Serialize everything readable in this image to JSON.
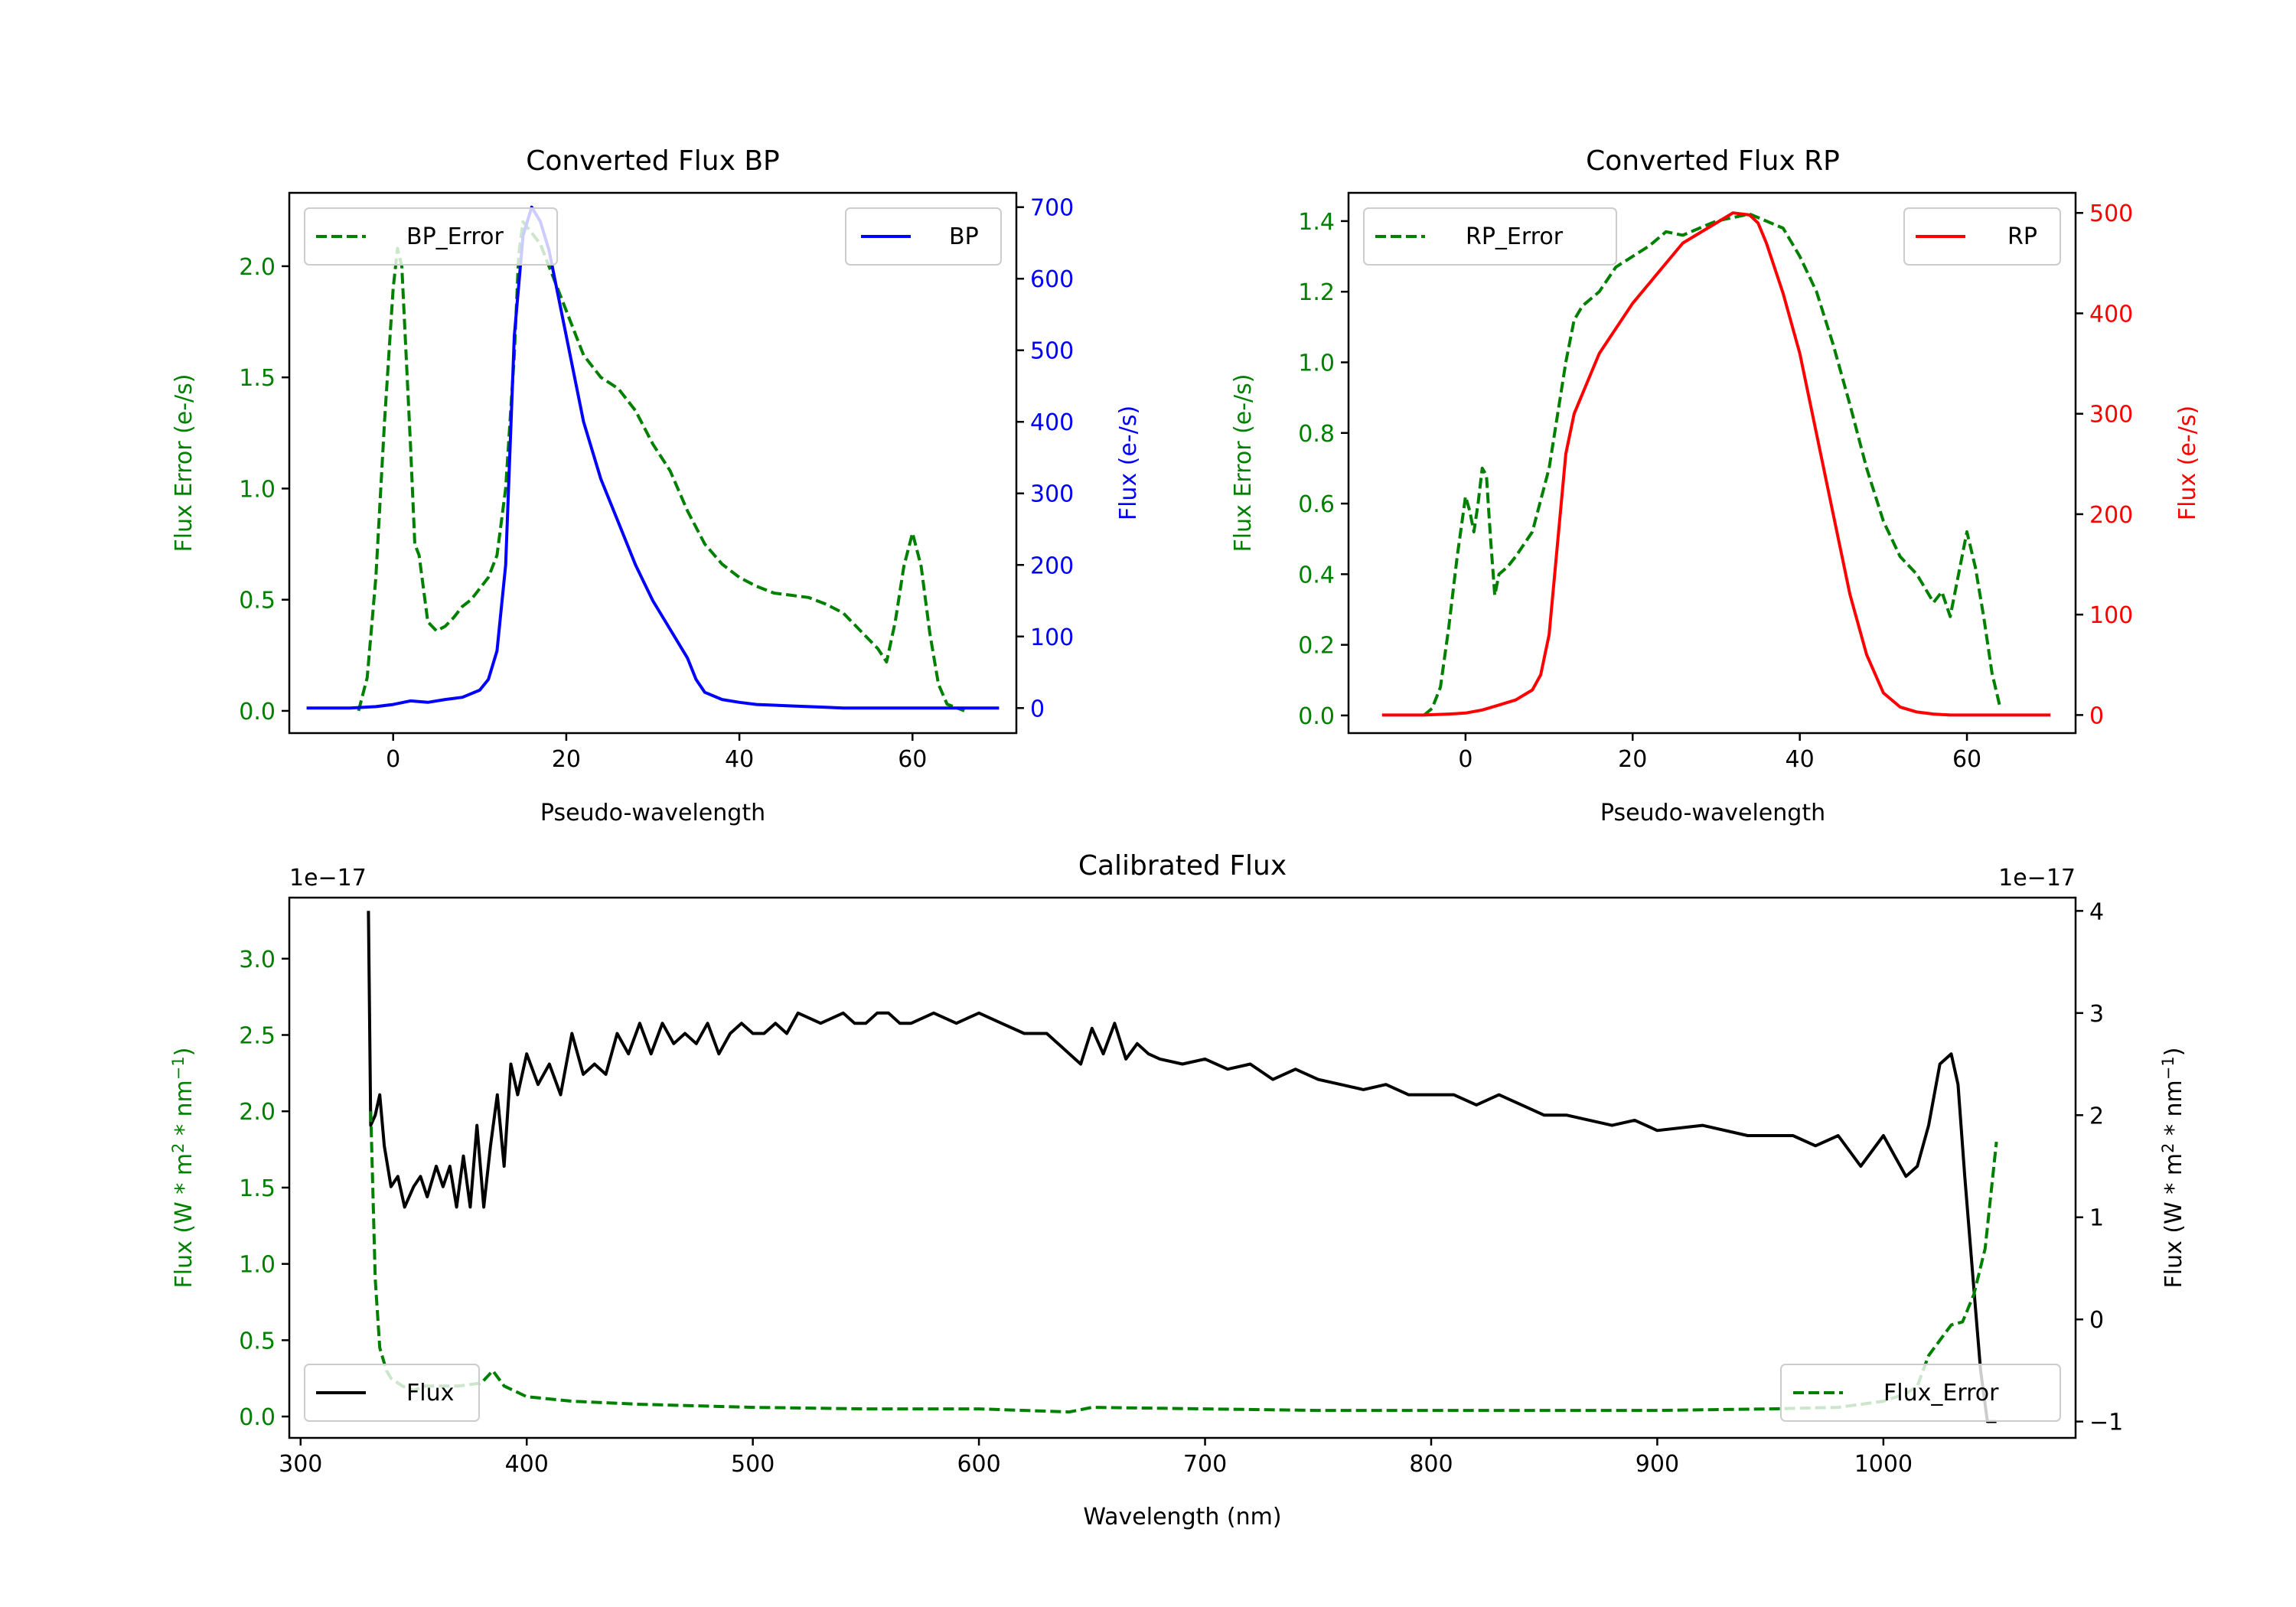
{
  "colors": {
    "green": "#008000",
    "blue": "#0000ff",
    "red": "#ff0000",
    "black": "#000000"
  },
  "chart_data": [
    {
      "type": "line",
      "title": "Converted Flux BP",
      "xlabel": "Pseudo-wavelength",
      "ylabel_left": "Flux Error (e-/s)",
      "ylabel_right": "Flux (e-/s)",
      "xlim": [
        -12,
        72
      ],
      "ylim_left": [
        -0.1,
        2.33
      ],
      "ylim_right": [
        -35,
        720
      ],
      "xticks": [
        "0",
        "20",
        "40",
        "60"
      ],
      "yticks_left": [
        "0.0",
        "0.5",
        "1.0",
        "1.5",
        "2.0"
      ],
      "yticks_right": [
        "0",
        "100",
        "200",
        "300",
        "400",
        "500",
        "600",
        "700"
      ],
      "legend_left": "BP_Error",
      "legend_right": "BP",
      "series": [
        {
          "name": "BP_Error",
          "axis": "left",
          "style": "dashed",
          "color": "#008000",
          "x": [
            -4,
            -3,
            -2,
            -1,
            0,
            0.5,
            1,
            2,
            2.5,
            3,
            4,
            5,
            6,
            7,
            8,
            9,
            10,
            11,
            12,
            13,
            14,
            14.5,
            15,
            16,
            17,
            18,
            20,
            22,
            24,
            26,
            28,
            30,
            32,
            34,
            36,
            38,
            40,
            42,
            44,
            46,
            48,
            50,
            52,
            54,
            56,
            57,
            58,
            59,
            60,
            61,
            62,
            63,
            64,
            66
          ],
          "y": [
            0,
            0.15,
            0.6,
            1.3,
            1.9,
            2.08,
            2.0,
            1.2,
            0.75,
            0.7,
            0.4,
            0.36,
            0.38,
            0.42,
            0.47,
            0.5,
            0.55,
            0.6,
            0.7,
            1.0,
            1.6,
            2.05,
            2.2,
            2.15,
            2.1,
            2.0,
            1.8,
            1.6,
            1.5,
            1.45,
            1.35,
            1.2,
            1.08,
            0.9,
            0.75,
            0.66,
            0.6,
            0.56,
            0.53,
            0.52,
            0.51,
            0.48,
            0.44,
            0.36,
            0.28,
            0.22,
            0.4,
            0.65,
            0.8,
            0.65,
            0.35,
            0.12,
            0.03,
            0
          ]
        },
        {
          "name": "BP",
          "axis": "right",
          "style": "solid",
          "color": "#0000ff",
          "x": [
            -10,
            -5,
            -2,
            0,
            2,
            4,
            6,
            8,
            10,
            11,
            12,
            13,
            14,
            15,
            16,
            17,
            18,
            20,
            22,
            24,
            26,
            28,
            30,
            32,
            34,
            35,
            36,
            38,
            40,
            42,
            44,
            46,
            48,
            50,
            52,
            54,
            56,
            58,
            60,
            65,
            70
          ],
          "y": [
            0,
            0,
            2,
            5,
            10,
            8,
            12,
            15,
            25,
            40,
            80,
            200,
            520,
            660,
            700,
            680,
            640,
            520,
            400,
            320,
            260,
            200,
            150,
            110,
            70,
            40,
            22,
            12,
            8,
            5,
            4,
            3,
            2,
            1,
            0,
            0,
            0,
            0,
            0,
            0,
            0
          ]
        }
      ]
    },
    {
      "type": "line",
      "title": "Converted Flux RP",
      "xlabel": "Pseudo-wavelength",
      "ylabel_left": "Flux Error (e-/s)",
      "ylabel_right": "Flux (e-/s)",
      "xlim": [
        -14,
        73
      ],
      "ylim_left": [
        -0.05,
        1.48
      ],
      "ylim_right": [
        -18,
        520
      ],
      "xticks": [
        "0",
        "20",
        "40",
        "60"
      ],
      "yticks_left": [
        "0.0",
        "0.2",
        "0.4",
        "0.6",
        "0.8",
        "1.0",
        "1.2",
        "1.4"
      ],
      "yticks_right": [
        "0",
        "100",
        "200",
        "300",
        "400",
        "500"
      ],
      "legend_left": "RP_Error",
      "legend_right": "RP",
      "series": [
        {
          "name": "RP_Error",
          "axis": "left",
          "style": "dashed",
          "color": "#008000",
          "x": [
            -5,
            -4,
            -3,
            -2,
            -1,
            0,
            0.5,
            1,
            1.5,
            2,
            2.5,
            3,
            3.5,
            4,
            5,
            6,
            8,
            10,
            12,
            13,
            14,
            16,
            18,
            20,
            22,
            24,
            26,
            28,
            30,
            32,
            34,
            36,
            38,
            40,
            42,
            44,
            46,
            48,
            50,
            52,
            54,
            56,
            57,
            58,
            59,
            60,
            61,
            62,
            63,
            64
          ],
          "y": [
            0,
            0.02,
            0.08,
            0.25,
            0.45,
            0.62,
            0.58,
            0.52,
            0.6,
            0.7,
            0.68,
            0.5,
            0.34,
            0.4,
            0.42,
            0.45,
            0.52,
            0.7,
            1.0,
            1.12,
            1.16,
            1.2,
            1.27,
            1.3,
            1.33,
            1.37,
            1.36,
            1.38,
            1.4,
            1.41,
            1.42,
            1.4,
            1.38,
            1.3,
            1.2,
            1.05,
            0.88,
            0.7,
            0.55,
            0.45,
            0.4,
            0.32,
            0.35,
            0.28,
            0.4,
            0.52,
            0.42,
            0.28,
            0.12,
            0.02
          ]
        },
        {
          "name": "RP",
          "axis": "right",
          "style": "solid",
          "color": "#ff0000",
          "x": [
            -10,
            -5,
            -2,
            0,
            2,
            4,
            6,
            8,
            9,
            10,
            11,
            12,
            13,
            14,
            16,
            18,
            20,
            22,
            24,
            26,
            28,
            30,
            32,
            34,
            35,
            36,
            38,
            40,
            42,
            44,
            46,
            48,
            50,
            52,
            54,
            56,
            58,
            60,
            62,
            65,
            70
          ],
          "y": [
            0,
            0,
            1,
            2,
            5,
            10,
            15,
            25,
            40,
            80,
            170,
            260,
            300,
            320,
            360,
            385,
            410,
            430,
            450,
            470,
            480,
            490,
            500,
            498,
            490,
            470,
            420,
            360,
            280,
            200,
            120,
            60,
            22,
            8,
            3,
            1,
            0,
            0,
            0,
            0,
            0
          ]
        }
      ]
    },
    {
      "type": "line",
      "title": "Calibrated Flux",
      "xlabel": "Wavelength (nm)",
      "ylabel_left": "Flux (W * m2 * nm-1)",
      "ylabel_right": "Flux (W * m2 * nm-1)",
      "offset_left": "1e−17",
      "offset_right": "1e−17",
      "xlim": [
        295,
        1085
      ],
      "ylim_left": [
        -0.14,
        3.4
      ],
      "ylim_right": [
        -1.16,
        4.13
      ],
      "xticks": [
        "300",
        "400",
        "500",
        "600",
        "700",
        "800",
        "900",
        "1000"
      ],
      "yticks_left": [
        "0.0",
        "0.5",
        "1.0",
        "1.5",
        "2.0",
        "2.5",
        "3.0"
      ],
      "yticks_right": [
        "−1",
        "0",
        "1",
        "2",
        "3",
        "4"
      ],
      "legend_left": "Flux",
      "legend_right": "Flux_Error",
      "series": [
        {
          "name": "Flux",
          "axis": "right",
          "style": "solid",
          "color": "#000000",
          "x": [
            330,
            331,
            333,
            335,
            337,
            340,
            343,
            346,
            350,
            353,
            356,
            360,
            363,
            366,
            369,
            372,
            375,
            378,
            381,
            384,
            387,
            390,
            393,
            396,
            400,
            405,
            410,
            415,
            420,
            425,
            430,
            435,
            440,
            445,
            450,
            455,
            460,
            465,
            470,
            475,
            480,
            485,
            490,
            495,
            500,
            505,
            510,
            515,
            520,
            530,
            540,
            545,
            550,
            555,
            560,
            565,
            570,
            580,
            590,
            600,
            610,
            620,
            630,
            640,
            645,
            650,
            655,
            660,
            665,
            670,
            675,
            680,
            690,
            700,
            710,
            720,
            730,
            740,
            750,
            760,
            770,
            780,
            790,
            800,
            810,
            820,
            830,
            840,
            850,
            860,
            870,
            880,
            890,
            900,
            920,
            940,
            960,
            970,
            980,
            990,
            1000,
            1010,
            1015,
            1020,
            1025,
            1030,
            1033,
            1036,
            1040,
            1043,
            1046,
            1049,
            1050
          ],
          "y": [
            4.0,
            1.9,
            2.0,
            2.2,
            1.7,
            1.3,
            1.4,
            1.1,
            1.3,
            1.4,
            1.2,
            1.5,
            1.3,
            1.5,
            1.1,
            1.6,
            1.1,
            1.9,
            1.1,
            1.7,
            2.2,
            1.5,
            2.5,
            2.2,
            2.6,
            2.3,
            2.5,
            2.2,
            2.8,
            2.4,
            2.5,
            2.4,
            2.8,
            2.6,
            2.9,
            2.6,
            2.9,
            2.7,
            2.8,
            2.7,
            2.9,
            2.6,
            2.8,
            2.9,
            2.8,
            2.8,
            2.9,
            2.8,
            3.0,
            2.9,
            3.0,
            2.9,
            2.9,
            3.0,
            3.0,
            2.9,
            2.9,
            3.0,
            2.9,
            3.0,
            2.9,
            2.8,
            2.8,
            2.6,
            2.5,
            2.85,
            2.6,
            2.9,
            2.55,
            2.7,
            2.6,
            2.55,
            2.5,
            2.55,
            2.45,
            2.5,
            2.35,
            2.45,
            2.35,
            2.3,
            2.25,
            2.3,
            2.2,
            2.2,
            2.2,
            2.1,
            2.2,
            2.1,
            2.0,
            2.0,
            1.95,
            1.9,
            1.95,
            1.85,
            1.9,
            1.8,
            1.8,
            1.7,
            1.8,
            1.5,
            1.8,
            1.4,
            1.5,
            1.9,
            2.5,
            2.6,
            2.3,
            1.4,
            0.3,
            -0.5,
            -1.0,
            -1.0,
            -1.0
          ]
        },
        {
          "name": "Flux_Error",
          "axis": "left",
          "style": "dashed",
          "color": "#008000",
          "x": [
            331,
            333,
            335,
            338,
            340,
            345,
            350,
            355,
            360,
            370,
            380,
            385,
            390,
            400,
            420,
            450,
            500,
            550,
            600,
            640,
            650,
            700,
            750,
            800,
            850,
            900,
            950,
            980,
            1000,
            1010,
            1015,
            1020,
            1025,
            1030,
            1035,
            1040,
            1045,
            1050
          ],
          "y": [
            2.0,
            0.9,
            0.45,
            0.3,
            0.25,
            0.2,
            0.17,
            0.2,
            0.2,
            0.2,
            0.22,
            0.3,
            0.2,
            0.13,
            0.1,
            0.08,
            0.06,
            0.05,
            0.05,
            0.03,
            0.06,
            0.05,
            0.04,
            0.04,
            0.04,
            0.04,
            0.05,
            0.06,
            0.1,
            0.15,
            0.2,
            0.4,
            0.5,
            0.6,
            0.62,
            0.8,
            1.1,
            1.8
          ]
        }
      ]
    }
  ]
}
